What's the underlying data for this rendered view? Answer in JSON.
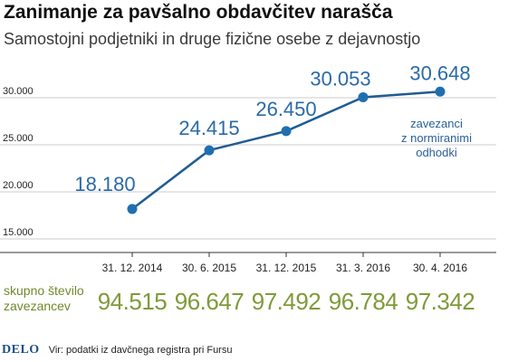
{
  "title": "Zanimanje za pavšalno obdavčitev narašča",
  "subtitle": "Samostojni podjetniki in druge fizične osebe z dejavnostjo",
  "chart_data": {
    "type": "line",
    "categories": [
      "31. 12. 2014",
      "30. 6. 2015",
      "31. 12. 2015",
      "31. 3. 2016",
      "30. 4. 2016"
    ],
    "series": [
      {
        "name": "zavezanci z normiranimi odhodki",
        "values": [
          18180,
          24415,
          26450,
          30053,
          30648
        ],
        "labels": [
          "18.180",
          "24.415",
          "26.450",
          "30.053",
          "30.648"
        ]
      }
    ],
    "y_ticks": [
      15000,
      20000,
      25000,
      30000
    ],
    "y_tick_labels": [
      "15.000",
      "20.000",
      "25.000",
      "30.000"
    ],
    "ylim": [
      15000,
      30000
    ],
    "grid": true,
    "annotation": [
      "zavezanci",
      "z normiranimi",
      "odhodki"
    ],
    "colors": {
      "line": "#1f5c94",
      "marker": "#1f6fb0",
      "grid": "#cccccc",
      "labels": "#2a6aa8",
      "totals": "#7f9a3a"
    }
  },
  "totals": {
    "label_line1": "skupno število",
    "label_line2": "zavezancev",
    "values": [
      "94.515",
      "96.647",
      "97.492",
      "96.784",
      "97.342"
    ]
  },
  "footer": {
    "logo": "DELO",
    "source": "Vir: podatki iz davčnega registra pri Fursu"
  }
}
